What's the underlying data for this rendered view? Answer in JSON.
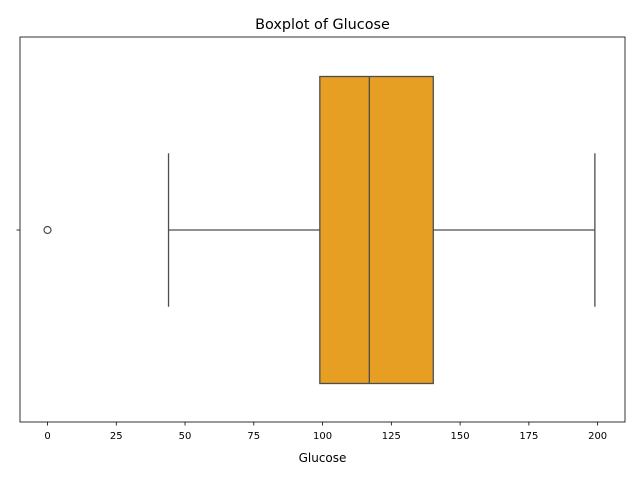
{
  "chart_data": {
    "type": "box",
    "title": "Boxplot of Glucose",
    "xlabel": "Glucose",
    "ylabel": "",
    "xlim": [
      -10.0,
      209.95
    ],
    "xticks": [
      0,
      25,
      50,
      75,
      100,
      125,
      150,
      175,
      200
    ],
    "yticks": [
      ""
    ],
    "grid": false,
    "box": {
      "whisker_low": 44,
      "q1": 99,
      "median": 117,
      "q3": 140.25,
      "whisker_high": 199,
      "outliers": [
        0
      ]
    },
    "colors": {
      "box_fill": "#e69f22",
      "box_edge": "#4d4d4d",
      "axis": "#000000"
    }
  }
}
